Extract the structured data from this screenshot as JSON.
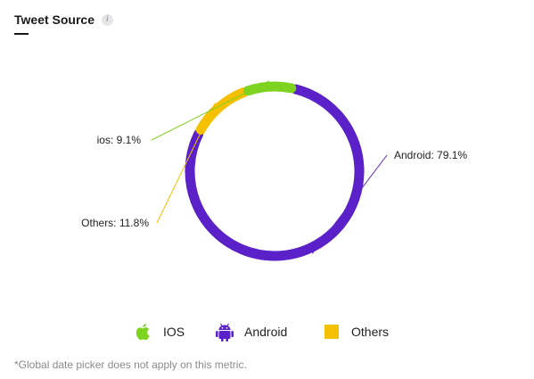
{
  "title": "Tweet Source",
  "info_icon": "info-icon",
  "footnote": "*Global date picker does not apply on this metric.",
  "colors": {
    "ios": "#7ed321",
    "android": "#5b21c9",
    "others": "#f5c000"
  },
  "legend": [
    {
      "label": "IOS",
      "icon": "apple-icon",
      "color": "#7ed321"
    },
    {
      "label": "Android",
      "icon": "android-icon",
      "color": "#5b21c9"
    },
    {
      "label": "Others",
      "icon": "square-icon",
      "color": "#f5c000"
    }
  ],
  "chart_data": {
    "type": "pie",
    "variant": "donut",
    "title": "Tweet Source",
    "slices": [
      {
        "name": "Android",
        "label": "Android",
        "value": 79.1,
        "value_text": "79.1%",
        "color": "#5b21c9"
      },
      {
        "name": "IOS",
        "label": "ios",
        "value": 9.1,
        "value_text": "9.1%",
        "color": "#7ed321"
      },
      {
        "name": "Others",
        "label": "Others",
        "value": 11.8,
        "value_text": "11.8%",
        "color": "#f5c000"
      }
    ],
    "legend_position": "bottom"
  }
}
